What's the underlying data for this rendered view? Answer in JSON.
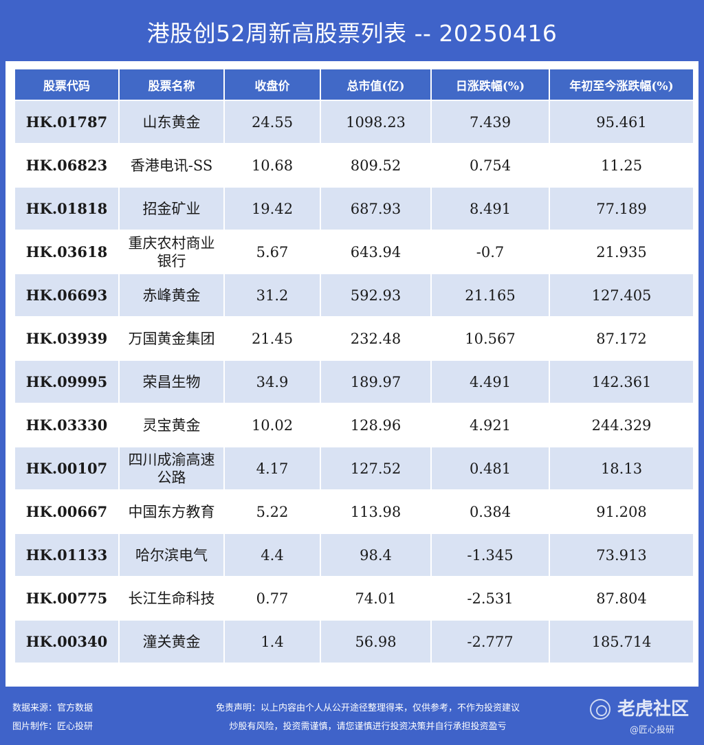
{
  "title": "港股创52周新高股票列表 -- 20250416",
  "table": {
    "headers": [
      "股票代码",
      "股票名称",
      "收盘价",
      "总市值(亿)",
      "日涨跌幅(%)",
      "年初至今涨跌幅(%)"
    ],
    "rows": [
      {
        "code": "HK.01787",
        "name": "山东黄金",
        "close": "24.55",
        "cap": "1098.23",
        "day": "7.439",
        "ytd": "95.461",
        "code_color": "blue",
        "day_color": "red"
      },
      {
        "code": "HK.06823",
        "name": "香港电讯-SS",
        "close": "10.68",
        "cap": "809.52",
        "day": "0.754",
        "ytd": "11.25",
        "code_color": "red",
        "day_color": "red"
      },
      {
        "code": "HK.01818",
        "name": "招金矿业",
        "close": "19.42",
        "cap": "687.93",
        "day": "8.491",
        "ytd": "77.189",
        "code_color": "red",
        "day_color": "red"
      },
      {
        "code": "HK.03618",
        "name": "重庆农村商业银行",
        "close": "5.67",
        "cap": "643.94",
        "day": "-0.7",
        "ytd": "21.935",
        "code_color": "red",
        "day_color": "green"
      },
      {
        "code": "HK.06693",
        "name": "赤峰黄金",
        "close": "31.2",
        "cap": "592.93",
        "day": "21.165",
        "ytd": "127.405",
        "code_color": "red",
        "day_color": "red"
      },
      {
        "code": "HK.03939",
        "name": "万国黄金集团",
        "close": "21.45",
        "cap": "232.48",
        "day": "10.567",
        "ytd": "87.172",
        "code_color": "red",
        "day_color": "red"
      },
      {
        "code": "HK.09995",
        "name": "荣昌生物",
        "close": "34.9",
        "cap": "189.97",
        "day": "4.491",
        "ytd": "142.361",
        "code_color": "blue",
        "day_color": "red"
      },
      {
        "code": "HK.03330",
        "name": "灵宝黄金",
        "close": "10.02",
        "cap": "128.96",
        "day": "4.921",
        "ytd": "244.329",
        "code_color": "red",
        "day_color": "red"
      },
      {
        "code": "HK.00107",
        "name": "四川成渝高速公路",
        "close": "4.17",
        "cap": "127.52",
        "day": "0.481",
        "ytd": "18.13",
        "code_color": "blue",
        "day_color": "red"
      },
      {
        "code": "HK.00667",
        "name": "中国东方教育",
        "close": "5.22",
        "cap": "113.98",
        "day": "0.384",
        "ytd": "91.208",
        "code_color": "blue",
        "day_color": "red"
      },
      {
        "code": "HK.01133",
        "name": "哈尔滨电气",
        "close": "4.4",
        "cap": "98.4",
        "day": "-1.345",
        "ytd": "73.913",
        "code_color": "blue",
        "day_color": "green"
      },
      {
        "code": "HK.00775",
        "name": "长江生命科技",
        "close": "0.77",
        "cap": "74.01",
        "day": "-2.531",
        "ytd": "87.804",
        "code_color": "blue",
        "day_color": "green"
      },
      {
        "code": "HK.00340",
        "name": "潼关黄金",
        "close": "1.4",
        "cap": "56.98",
        "day": "-2.777",
        "ytd": "185.714",
        "code_color": "blue",
        "day_color": "green"
      }
    ]
  },
  "footer": {
    "source": "数据来源：官方数据",
    "maker": "图片制作：匠心投研",
    "disclaimer": "免责声明：以上内容由个人从公开途径整理得来，仅供参考，不作为投资建议",
    "risk": "炒股有风险，投资需谨慎，请您谨慎进行投资决策并自行承担投资盈亏"
  },
  "watermark": {
    "brand": "老虎社区",
    "sub": "@匠心投研"
  },
  "colors": {
    "background": "#3f63c9",
    "header_bg": "#4169c7",
    "row_shade": "#d9e2f3",
    "code_blue": "#3c5fb5",
    "value_red": "#d9321f",
    "value_green": "#1f7a1f"
  }
}
